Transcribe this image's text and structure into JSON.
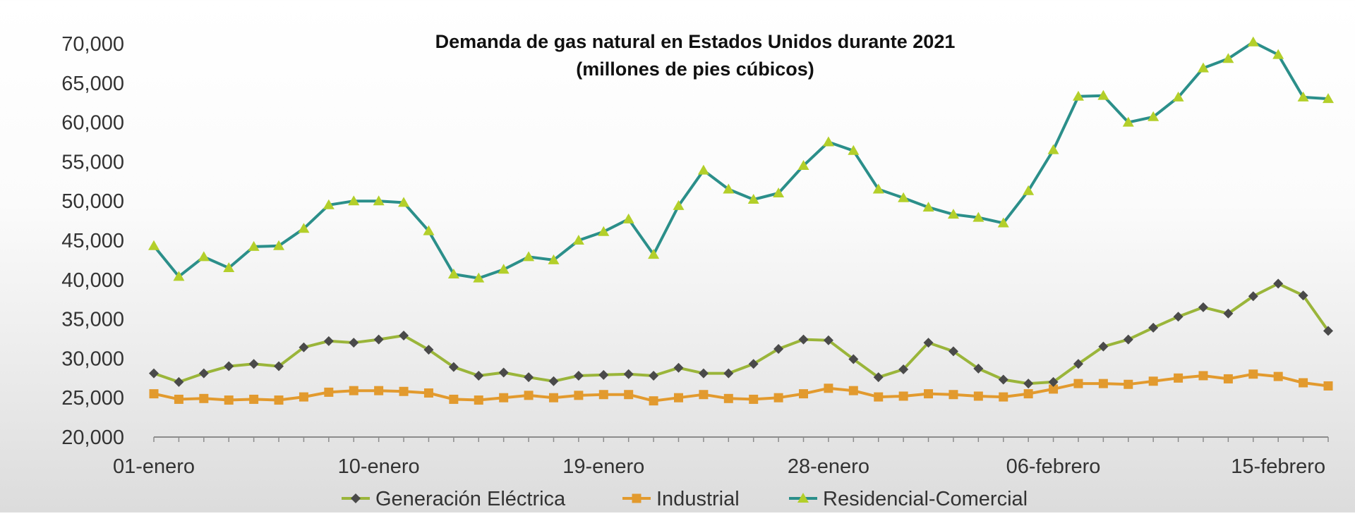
{
  "chart_data": {
    "type": "line",
    "title": "Demanda de gas natural en Estados Unidos durante 2021",
    "subtitle": "(millones de pies cúbicos)",
    "x_tick_labels": [
      "01-enero",
      "10-enero",
      "19-enero",
      "28-enero",
      "06-febrero",
      "15-febrero"
    ],
    "x_tick_positions": [
      0,
      9,
      18,
      27,
      36,
      45
    ],
    "x_range": [
      0,
      47
    ],
    "ylim": [
      20000,
      70000
    ],
    "y_ticks": [
      20000,
      25000,
      30000,
      35000,
      40000,
      45000,
      50000,
      55000,
      60000,
      65000,
      70000
    ],
    "y_tick_labels": [
      "20,000",
      "25,000",
      "30,000",
      "35,000",
      "40,000",
      "45,000",
      "50,000",
      "55,000",
      "60,000",
      "65,000",
      "70,000"
    ],
    "grid": false,
    "legend_position": "bottom",
    "series": [
      {
        "name": "Generación Eléctrica",
        "line_color": "#9ab53a",
        "marker": "diamond",
        "marker_color": "#4a4a4a",
        "values": [
          28100,
          27000,
          28100,
          29000,
          29300,
          29000,
          31400,
          32200,
          32000,
          32400,
          32900,
          31100,
          28900,
          27800,
          28200,
          27600,
          27100,
          27800,
          27900,
          28000,
          27800,
          28800,
          28100,
          28100,
          29300,
          31200,
          32400,
          32300,
          29900,
          27600,
          28600,
          32000,
          30900,
          28700,
          27300,
          26800,
          27000,
          29300,
          31500,
          32400,
          33900,
          35300,
          36500,
          35700,
          37900,
          39500,
          38000,
          33500
        ]
      },
      {
        "name": "Industrial",
        "line_color": "#e29a2e",
        "marker": "square",
        "marker_color": "#e29a2e",
        "values": [
          25500,
          24800,
          24900,
          24700,
          24800,
          24700,
          25100,
          25700,
          25900,
          25900,
          25800,
          25600,
          24800,
          24700,
          25000,
          25300,
          25000,
          25300,
          25400,
          25400,
          24600,
          25000,
          25400,
          24900,
          24800,
          25000,
          25500,
          26200,
          25900,
          25100,
          25200,
          25500,
          25400,
          25200,
          25100,
          25500,
          26100,
          26800,
          26800,
          26700,
          27100,
          27500,
          27800,
          27400,
          28000,
          27700,
          26900,
          26500
        ]
      },
      {
        "name": "Residencial-Comercial",
        "line_color": "#2b8f8a",
        "marker": "triangle",
        "marker_color": "#b3cf2a",
        "values": [
          44300,
          40400,
          42900,
          41500,
          44200,
          44300,
          46500,
          49500,
          50000,
          50000,
          49800,
          46200,
          40700,
          40200,
          41300,
          42900,
          42500,
          45000,
          46100,
          47700,
          43200,
          49400,
          53900,
          51500,
          50200,
          51000,
          54500,
          57500,
          56400,
          51500,
          50400,
          49200,
          48300,
          47900,
          47200,
          51300,
          56500,
          63300,
          63400,
          60000,
          60700,
          63200,
          66900,
          68100,
          70200,
          68600,
          63200,
          63000
        ]
      }
    ]
  }
}
